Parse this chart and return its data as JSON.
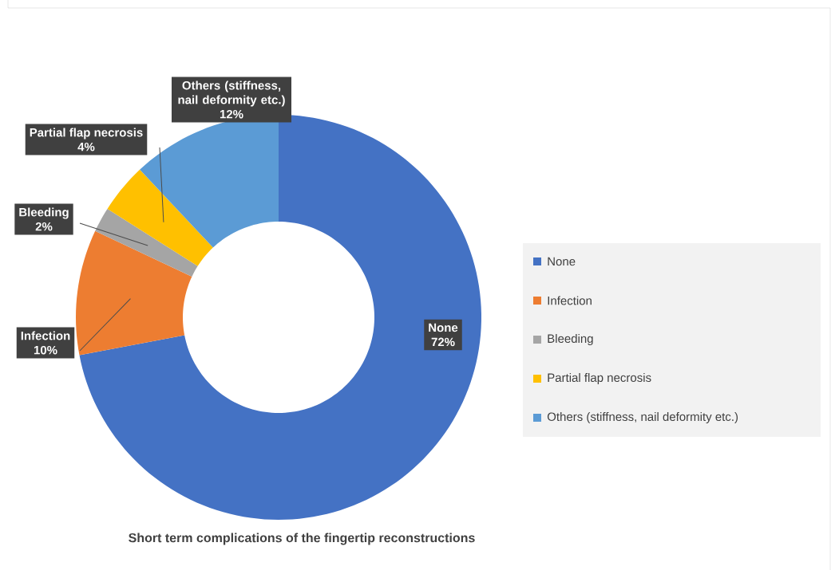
{
  "chart_data": {
    "type": "donut",
    "title": "Short term complications of the fingertip reconstructions",
    "categories": [
      "None",
      "Infection",
      "Bleeding",
      "Partial flap necrosis",
      "Others (stiffness, nail deformity etc.)"
    ],
    "values": [
      72,
      10,
      2,
      4,
      12
    ],
    "value_labels": [
      "72%",
      "10%",
      "2%",
      "4%",
      "12%"
    ],
    "colors": [
      "#4472c4",
      "#ed7d31",
      "#a5a5a5",
      "#ffc000",
      "#5b9bd5"
    ],
    "legend": "right"
  }
}
